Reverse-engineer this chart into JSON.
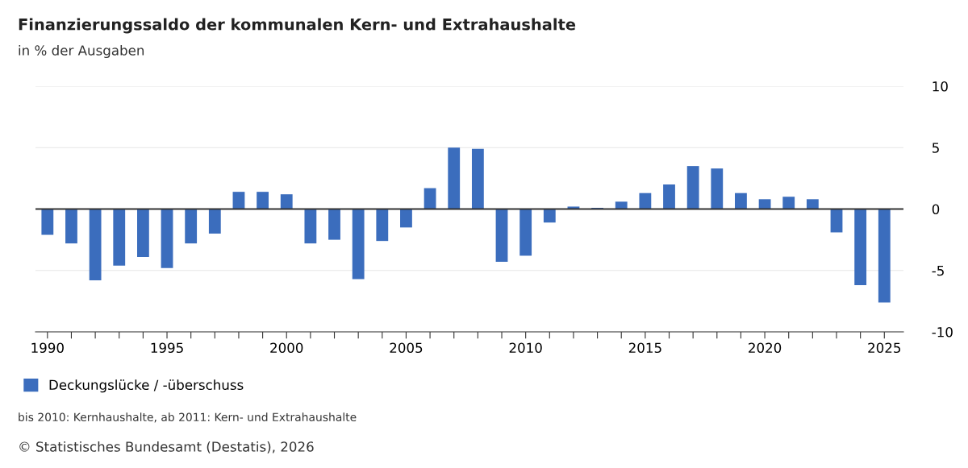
{
  "chart_data": {
    "type": "bar",
    "title": "Finanzierungssaldo der kommunalen Kern- und Extrahaushalte",
    "subtitle": "in % der Ausgaben",
    "x": [
      1990,
      1991,
      1992,
      1993,
      1994,
      1995,
      1996,
      1997,
      1998,
      1999,
      2000,
      2001,
      2002,
      2003,
      2004,
      2005,
      2006,
      2007,
      2008,
      2009,
      2010,
      2011,
      2012,
      2013,
      2014,
      2015,
      2016,
      2017,
      2018,
      2019,
      2020,
      2021,
      2022,
      2023,
      2024,
      2025
    ],
    "series": [
      {
        "name": "Deckungslücke / -überschuss",
        "color": "#3b6dbd",
        "values": [
          -2.1,
          -2.8,
          -5.8,
          -4.6,
          -3.9,
          -4.8,
          -2.8,
          -2.0,
          1.4,
          1.4,
          1.2,
          -2.8,
          -2.5,
          -5.7,
          -2.6,
          -1.5,
          1.7,
          5.0,
          4.9,
          -4.3,
          -3.8,
          -1.1,
          0.2,
          0.1,
          0.6,
          1.3,
          2.0,
          3.5,
          3.3,
          1.3,
          0.8,
          1.0,
          0.8,
          -1.9,
          -6.2,
          -7.6
        ]
      }
    ],
    "xlim": [
      1989.5,
      2025.8
    ],
    "xticks": [
      1990,
      {
        "value": 1991,
        "label": null
      },
      {
        "value": 1992,
        "label": null
      },
      {
        "value": 1993,
        "label": null
      },
      {
        "value": 1994,
        "label": null
      },
      1995,
      {
        "value": 1996,
        "label": null
      },
      {
        "value": 1997,
        "label": null
      },
      {
        "value": 1998,
        "label": null
      },
      {
        "value": 1999,
        "label": null
      },
      2000,
      {
        "value": 2001,
        "label": null
      },
      {
        "value": 2002,
        "label": null
      },
      {
        "value": 2003,
        "label": null
      },
      {
        "value": 2004,
        "label": null
      },
      2005,
      {
        "value": 2006,
        "label": null
      },
      {
        "value": 2007,
        "label": null
      },
      {
        "value": 2008,
        "label": null
      },
      {
        "value": 2009,
        "label": null
      },
      2010,
      {
        "value": 2011,
        "label": null
      },
      {
        "value": 2012,
        "label": null
      },
      {
        "value": 2013,
        "label": null
      },
      {
        "value": 2014,
        "label": null
      },
      2015,
      {
        "value": 2016,
        "label": null
      },
      {
        "value": 2017,
        "label": null
      },
      {
        "value": 2018,
        "label": null
      },
      {
        "value": 2019,
        "label": null
      },
      2020,
      {
        "value": 2021,
        "label": null
      },
      {
        "value": 2022,
        "label": null
      },
      {
        "value": 2023,
        "label": null
      },
      {
        "value": 2024,
        "label": null
      },
      2025
    ],
    "ylim": [
      -10,
      10
    ],
    "yticks": [
      -10,
      -5,
      0,
      5,
      10
    ],
    "grid": "y",
    "legend": "bottom left",
    "ref_lines": [
      {
        "axis": "y",
        "value": 0,
        "color": "#333333"
      }
    ],
    "annotations": [
      "bis 2010: Kernhaushalte, ab 2011: Kern- und Extrahaushalte",
      "© Statistisches Bundesamt (Destatis), 2026"
    ]
  }
}
